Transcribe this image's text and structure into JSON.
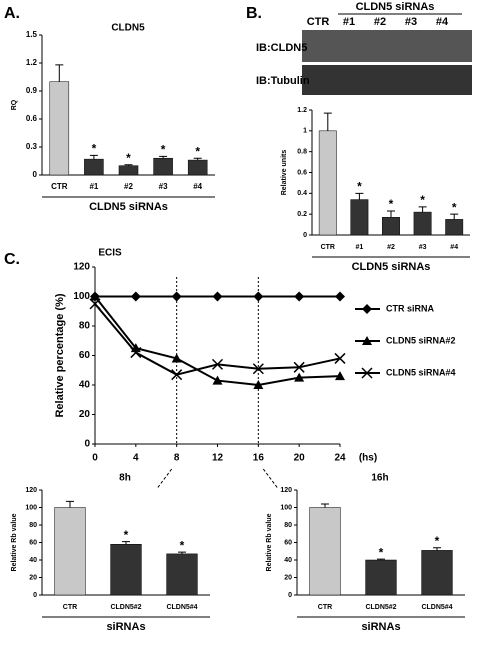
{
  "chart_data": [
    {
      "type": "bar",
      "panel_label": "A.",
      "title": "CLDN5",
      "y_label": "RQ",
      "x_label": "CLDN5 siRNAs",
      "categories": [
        "CTR",
        "#1",
        "#2",
        "#3",
        "#4"
      ],
      "values": [
        1.0,
        0.17,
        0.1,
        0.18,
        0.16
      ],
      "errors": [
        0.18,
        0.04,
        0.01,
        0.02,
        0.02
      ],
      "significance": [
        null,
        "*",
        "*",
        "*",
        "*"
      ],
      "colors": [
        "#c8c8c8",
        "#333333",
        "#333333",
        "#333333",
        "#333333"
      ],
      "ylim": [
        0,
        1.5
      ],
      "yticks": [
        0,
        0.3,
        0.6,
        0.9,
        1.2,
        1.5
      ]
    },
    {
      "type": "bar",
      "panel_label": "B.",
      "blot_header": "CLDN5 siRNAs",
      "blot_lanes": [
        "CTR",
        "#1",
        "#2",
        "#3",
        "#4"
      ],
      "blot_labels": [
        "IB:CLDN5",
        "IB:Tubulin"
      ],
      "y_label": "Relative units",
      "x_label": "CLDN5 siRNAs",
      "categories": [
        "CTR",
        "#1",
        "#2",
        "#3",
        "#4"
      ],
      "values": [
        1.0,
        0.34,
        0.17,
        0.22,
        0.15
      ],
      "errors": [
        0.17,
        0.06,
        0.06,
        0.05,
        0.05
      ],
      "significance": [
        null,
        "*",
        "*",
        "*",
        "*"
      ],
      "colors": [
        "#c8c8c8",
        "#333333",
        "#333333",
        "#333333",
        "#333333"
      ],
      "ylim": [
        0,
        1.2
      ],
      "yticks": [
        0,
        0.2,
        0.4,
        0.6,
        0.8,
        1,
        1.2
      ]
    },
    {
      "type": "line",
      "panel_label": "C.",
      "title": "ECIS",
      "y_label": "Relative percentage (%)",
      "x_unit": "(hs)",
      "x": [
        0,
        4,
        8,
        12,
        16,
        20,
        24
      ],
      "xlim": [
        0,
        24
      ],
      "xticks": [
        0,
        4,
        8,
        12,
        16,
        20,
        24
      ],
      "ylim": [
        0,
        120
      ],
      "yticks": [
        0,
        20,
        40,
        60,
        80,
        100,
        120
      ],
      "series": [
        {
          "name": "CTR siRNA",
          "color": "#000000",
          "marker": "diamond",
          "values": [
            100,
            100,
            100,
            100,
            100,
            100,
            100
          ]
        },
        {
          "name": "CLDN5 siRNA#2",
          "color": "#000000",
          "marker": "triangle",
          "values": [
            100,
            65,
            58,
            43,
            40,
            45,
            46
          ]
        },
        {
          "name": "CLDN5 siRNA#4",
          "color": "#000000",
          "marker": "cross",
          "values": [
            95,
            62,
            47,
            54,
            51,
            52,
            58
          ]
        }
      ]
    },
    {
      "type": "bar",
      "title": "8h",
      "y_label": "Relative Rb value",
      "x_label": "siRNAs",
      "categories": [
        "CTR",
        "CLDN5#2",
        "CLDN5#4"
      ],
      "values": [
        100,
        58,
        47
      ],
      "errors": [
        7,
        3,
        2
      ],
      "significance": [
        null,
        "*",
        "*"
      ],
      "colors": [
        "#c8c8c8",
        "#333333",
        "#333333"
      ],
      "ylim": [
        0,
        120
      ],
      "yticks": [
        0,
        20,
        40,
        60,
        80,
        100,
        120
      ]
    },
    {
      "type": "bar",
      "title": "16h",
      "y_label": "Relative Rb value",
      "x_label": "siRNAs",
      "categories": [
        "CTR",
        "CLDN5#2",
        "CLDN5#4"
      ],
      "values": [
        100,
        40,
        51
      ],
      "errors": [
        4,
        1,
        3
      ],
      "significance": [
        null,
        "*",
        "*"
      ],
      "colors": [
        "#c8c8c8",
        "#333333",
        "#333333"
      ],
      "ylim": [
        0,
        120
      ],
      "yticks": [
        0,
        20,
        40,
        60,
        80,
        100,
        120
      ]
    }
  ]
}
